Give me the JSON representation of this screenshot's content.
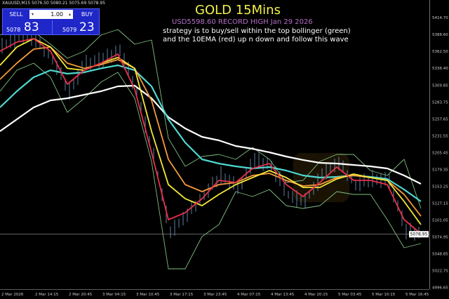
{
  "header": {
    "symbol_line": "XAUUSD,M15  5076.50 5080.21 5075.69 5078.95"
  },
  "trade_panel": {
    "sell_label": "SELL",
    "buy_label": "BUY",
    "lot_value": "1.00",
    "sell_price_small": "5078",
    "sell_price_big": "83",
    "buy_price_small": "5079",
    "buy_price_big": "23"
  },
  "annotations": {
    "title": "GOLD 15Mins",
    "record": "USD5598.60  RECORD HIGH  Jan 29 2026",
    "note_line1": "strategy is to buy/sell within the top bollinger (green)",
    "note_line2": "and the 10EMA (red) up n down and follow this wave"
  },
  "colors": {
    "background": "#000000",
    "candles": "#8fc8ff",
    "ema10": "#e8304a",
    "yellow_ma": "#f5e83a",
    "orange_ma": "#f39a3a",
    "cyan_ma": "#4fd8d0",
    "white_ma": "#ffffff",
    "bollinger": "#7fbf80",
    "panel": "#1f27c9"
  },
  "chart_data": {
    "type": "line",
    "title": "",
    "xlabel": "",
    "ylabel": "",
    "ylim": [
      4990,
      5440
    ],
    "grid": false,
    "current_price": "5078.95",
    "y_ticks": [
      "5414.70",
      "5388.60",
      "5362.50",
      "5336.40",
      "5309.85",
      "5283.75",
      "5257.65",
      "5231.55",
      "5205.45",
      "5179.35",
      "5153.25",
      "5127.15",
      "5101.05",
      "5074.95",
      "5048.85",
      "5022.75",
      "4996.65"
    ],
    "x_ticks": [
      "2 Mar 2026",
      "2 Mar 14:15",
      "2 Mar 20:45",
      "3 Mar 04:15",
      "3 Mar 10:45",
      "3 Mar 17:15",
      "3 Mar 23:45",
      "4 Mar 07:15",
      "4 Mar 13:45",
      "4 Mar 20:15",
      "5 Mar 03:45",
      "5 Mar 10:15",
      "5 Mar 16:45"
    ],
    "series": [
      {
        "key": "close",
        "values": [
          5370,
          5385,
          5380,
          5350,
          5300,
          5345,
          5350,
          5365,
          5300,
          5200,
          5080,
          5110,
          5140,
          5170,
          5150,
          5195,
          5185,
          5140,
          5130,
          5170,
          5190,
          5155,
          5165,
          5160,
          5085,
          5079
        ]
      },
      {
        "key": "boll_upper",
        "values": [
          5387.5,
          5398.4,
          5393,
          5373.4,
          5351.6,
          5362.5,
          5387.5,
          5396.2,
          5373.4,
          5379.9,
          5227.6,
          5184.2,
          5199.4,
          5202.6,
          5195,
          5213.5,
          5195,
          5159,
          5162.4,
          5191.8,
          5202.6,
          5202.6,
          5177.6,
          5170,
          5195,
          5118.9
        ]
      },
      {
        "key": "boll_lower",
        "values": [
          5300.5,
          5333,
          5344,
          5322.3,
          5267.9,
          5289.6,
          5314.7,
          5329.9,
          5289.6,
          5191.8,
          5025.4,
          5025.4,
          5075.4,
          5093.9,
          5145,
          5137.4,
          5148.3,
          5123.3,
          5118.9,
          5123.3,
          5145,
          5140.6,
          5140.6,
          5101.5,
          5058,
          5064.5
        ]
      },
      {
        "key": "white_ma",
        "values": [
          5238.5,
          5257,
          5275.5,
          5286.4,
          5289.6,
          5295.1,
          5300.5,
          5308.1,
          5309.2,
          5289.6,
          5260.3,
          5242.9,
          5229.8,
          5224.4,
          5215.7,
          5211.3,
          5205.9,
          5199.4,
          5194,
          5189.6,
          5188.5,
          5186.3,
          5184.2,
          5180.9,
          5170,
          5157
        ]
      },
      {
        "key": "cyan_ma",
        "values": [
          5275.5,
          5300.5,
          5322.3,
          5333,
          5327.7,
          5329.9,
          5336,
          5340.8,
          5333,
          5308.1,
          5257,
          5221,
          5195,
          5188.5,
          5184.2,
          5180.9,
          5183.1,
          5177.6,
          5170,
          5166.7,
          5167.8,
          5170,
          5167.8,
          5164.6,
          5148.3,
          5129.8
        ]
      },
      {
        "key": "orange_ma",
        "values": [
          5319,
          5344,
          5365.8,
          5369,
          5344,
          5336,
          5341.8,
          5349.5,
          5336,
          5286.4,
          5195,
          5155.9,
          5145,
          5155.9,
          5159,
          5170,
          5173.3,
          5162.4,
          5153.7,
          5155.9,
          5166.7,
          5170,
          5166.7,
          5162.4,
          5140.6,
          5107
        ]
      },
      {
        "key": "yellow_ma",
        "values": [
          5340.8,
          5369,
          5382,
          5369,
          5336,
          5333,
          5344,
          5352.7,
          5336,
          5238.5,
          5155.9,
          5134,
          5123.3,
          5140.6,
          5155.9,
          5166.7,
          5177.6,
          5166.7,
          5151.5,
          5151.5,
          5164.6,
          5172.2,
          5166.7,
          5162.4,
          5129.8,
          5093.9
        ]
      },
      {
        "key": "ema10",
        "values": [
          5362.5,
          5376.6,
          5382.1,
          5362.5,
          5311.4,
          5333.1,
          5344,
          5358.1,
          5303.8,
          5205.9,
          5101.5,
          5112.4,
          5134.1,
          5162.4,
          5159.1,
          5180.9,
          5188.5,
          5155.9,
          5137.4,
          5159.1,
          5183.1,
          5162.4,
          5162.4,
          5155.9,
          5101.5,
          5079.7
        ]
      }
    ]
  }
}
